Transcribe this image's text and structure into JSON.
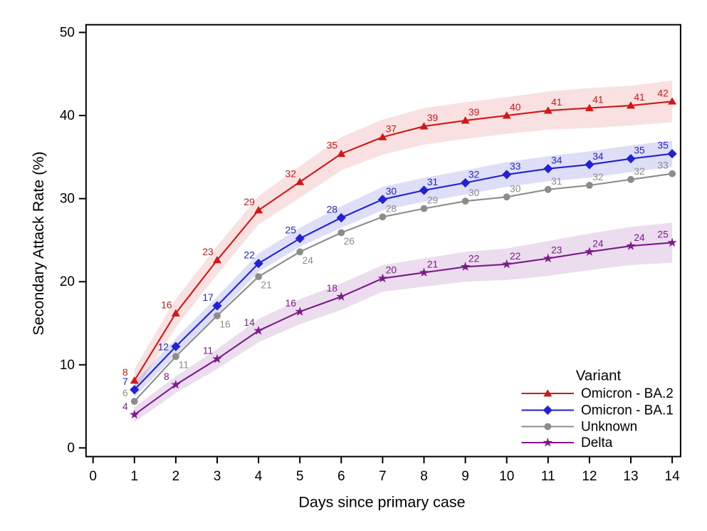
{
  "chart_data": {
    "type": "line",
    "title": "",
    "xlabel": "Days since primary case",
    "ylabel": "Secondary Attack Rate (%)",
    "x": [
      1,
      2,
      3,
      4,
      5,
      6,
      7,
      8,
      9,
      10,
      11,
      12,
      13,
      14
    ],
    "x_ticks": [
      0,
      1,
      2,
      3,
      4,
      5,
      6,
      7,
      8,
      9,
      10,
      11,
      12,
      13,
      14
    ],
    "y_ticks": [
      0,
      10,
      20,
      30,
      40,
      50
    ],
    "xlim": [
      -0.17,
      14.2
    ],
    "ylim": [
      -1.05,
      50.93
    ],
    "grid": false,
    "background": "#ffffff",
    "frame_color": "#000000",
    "text_color": "#000000",
    "legend": {
      "title": "Variant",
      "position": "bottom-right-inside",
      "entries": [
        "Omicron - BA.2",
        "Omicron - BA.1",
        "Unknown",
        "Delta"
      ]
    },
    "series": [
      {
        "name": "Omicron - BA.2",
        "color": "#d01818",
        "band_opacity": 0.13,
        "marker": "triangle",
        "values": [
          8.1,
          16.2,
          22.6,
          28.6,
          32.0,
          35.4,
          37.4,
          38.7,
          39.4,
          40.0,
          40.6,
          40.9,
          41.2,
          41.7
        ],
        "labels": [
          "8",
          "16",
          "23",
          "29",
          "32",
          "35",
          "37",
          "39",
          "39",
          "40",
          "41",
          "41",
          "41",
          "42"
        ],
        "label_side": [
          "AL",
          "AL",
          "AL",
          "AL",
          "AL",
          "AL",
          "AR",
          "AR",
          "AR",
          "AR",
          "AR",
          "AR",
          "AR",
          "AL"
        ],
        "band_lower": [
          6.7,
          14.5,
          20.9,
          26.9,
          30.1,
          33.4,
          35.3,
          36.5,
          37.2,
          37.8,
          38.3,
          38.5,
          38.8,
          39.2
        ],
        "band_upper": [
          9.5,
          17.9,
          24.3,
          30.3,
          33.9,
          37.4,
          39.5,
          40.9,
          41.6,
          42.2,
          42.9,
          43.3,
          43.6,
          44.2
        ]
      },
      {
        "name": "Omicron - BA.1",
        "color": "#2222d2",
        "band_opacity": 0.15,
        "marker": "diamond",
        "values": [
          7.0,
          12.2,
          17.1,
          22.2,
          25.2,
          27.7,
          29.9,
          31.0,
          31.9,
          32.9,
          33.6,
          34.1,
          34.8,
          35.4
        ],
        "labels": [
          "7",
          "12",
          "17",
          "22",
          "25",
          "28",
          "30",
          "31",
          "32",
          "33",
          "34",
          "34",
          "35",
          "35"
        ],
        "label_side": [
          "AL",
          "L",
          "AL",
          "AL",
          "AL",
          "AL",
          "AR",
          "AR",
          "AR",
          "AR",
          "AR",
          "AR",
          "AR",
          "AL"
        ],
        "band_lower": [
          6.1,
          11.2,
          16.0,
          21.2,
          24.2,
          26.5,
          28.6,
          29.6,
          30.5,
          31.4,
          32.1,
          32.5,
          33.2,
          33.8
        ],
        "band_upper": [
          7.9,
          13.2,
          18.2,
          23.4,
          26.5,
          29.1,
          31.4,
          32.5,
          33.4,
          34.4,
          35.1,
          35.7,
          36.4,
          37.0
        ]
      },
      {
        "name": "Unknown",
        "color": "#8c8c8c",
        "band_opacity": 0,
        "marker": "circle",
        "values": [
          5.6,
          11.0,
          15.9,
          20.6,
          23.6,
          25.9,
          27.8,
          28.8,
          29.7,
          30.2,
          31.1,
          31.6,
          32.3,
          33.0
        ],
        "labels": [
          "6",
          "11",
          "16",
          "21",
          "24",
          "26",
          "28",
          "29",
          "30",
          "30",
          "31",
          "32",
          "32",
          "33"
        ],
        "label_side": [
          "AL",
          "BR",
          "BR",
          "BR",
          "BR",
          "BR",
          "AR",
          "AR",
          "AR",
          "AR",
          "AR",
          "AR",
          "AR",
          "AL"
        ],
        "band_lower": null,
        "band_upper": null
      },
      {
        "name": "Delta",
        "color": "#7c1a8c",
        "band_opacity": 0.15,
        "marker": "star",
        "values": [
          4.0,
          7.6,
          10.7,
          14.1,
          16.4,
          18.2,
          20.4,
          21.1,
          21.8,
          22.1,
          22.8,
          23.6,
          24.3,
          24.7
        ],
        "labels": [
          "4",
          "8",
          "11",
          "14",
          "16",
          "18",
          "20",
          "21",
          "22",
          "22",
          "23",
          "24",
          "24",
          "25"
        ],
        "label_side": [
          "AL",
          "AL",
          "AL",
          "AL",
          "AL",
          "AL",
          "AR",
          "AR",
          "AR",
          "AR",
          "AR",
          "AR",
          "AR",
          "AL"
        ],
        "band_lower": [
          3.1,
          6.6,
          9.5,
          12.7,
          14.9,
          16.6,
          18.8,
          19.4,
          20.0,
          20.2,
          20.7,
          21.4,
          22.0,
          22.3
        ],
        "band_upper": [
          4.9,
          8.6,
          11.9,
          15.5,
          17.9,
          19.8,
          22.0,
          22.8,
          23.6,
          24.0,
          24.9,
          25.8,
          26.6,
          27.1
        ]
      }
    ]
  }
}
